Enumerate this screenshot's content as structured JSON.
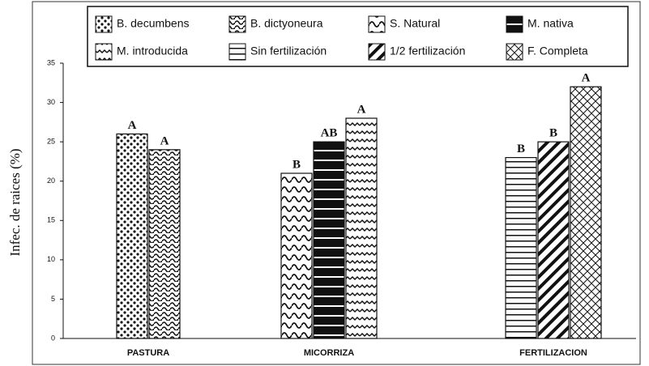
{
  "chart_data": {
    "type": "bar",
    "ylabel": "Infec. de raices (%)",
    "categories": [
      "PASTURA",
      "MICORRIZA",
      "FERTILIZACION"
    ],
    "series": [
      {
        "name": "B. decumbens",
        "values": [
          26,
          null,
          null
        ],
        "letters": [
          "A",
          null,
          null
        ]
      },
      {
        "name": "B. dictyoneura",
        "values": [
          24,
          null,
          null
        ],
        "letters": [
          "A",
          null,
          null
        ]
      },
      {
        "name": "S. Natural",
        "values": [
          null,
          21,
          null
        ],
        "letters": [
          null,
          "B",
          null
        ]
      },
      {
        "name": "M. nativa",
        "values": [
          null,
          25,
          null
        ],
        "letters": [
          null,
          "AB",
          null
        ]
      },
      {
        "name": "M. introducida",
        "values": [
          null,
          28,
          null
        ],
        "letters": [
          null,
          "A",
          null
        ]
      },
      {
        "name": "Sin fertilización",
        "values": [
          null,
          null,
          23
        ],
        "letters": [
          null,
          null,
          "B"
        ]
      },
      {
        "name": "1/2 fertilización",
        "values": [
          null,
          null,
          25
        ],
        "letters": [
          null,
          null,
          "B"
        ]
      },
      {
        "name": "F. Completa",
        "values": [
          null,
          null,
          32
        ],
        "letters": [
          null,
          null,
          "A"
        ]
      }
    ],
    "ylim": [
      0,
      35
    ],
    "yticks": [
      0,
      5,
      10,
      15,
      20,
      25,
      30,
      35
    ]
  }
}
